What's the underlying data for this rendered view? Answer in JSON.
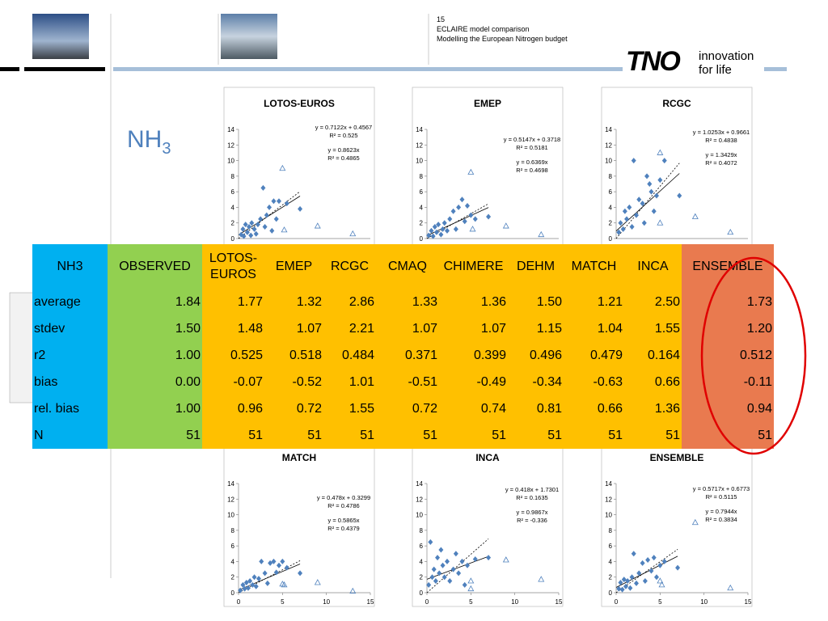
{
  "header": {
    "page_number": "15",
    "line1": "ECLAIRE model comparison",
    "line2": "Modelling the European Nitrogen budget",
    "logo": "TNO",
    "tagline1": "innovation",
    "tagline2": "for life"
  },
  "title": {
    "main": "NH",
    "sub": "3"
  },
  "table": {
    "header": [
      "NH3",
      "OBSERVED",
      "LOTOS-EUROS",
      "EMEP",
      "RCGC",
      "CMAQ",
      "CHIMERE",
      "DEHM",
      "MATCH",
      "INCA",
      "ENSEMBLE"
    ],
    "rows": [
      [
        "average",
        "1.84",
        "1.77",
        "1.32",
        "2.86",
        "1.33",
        "1.36",
        "1.50",
        "1.21",
        "2.50",
        "1.73"
      ],
      [
        "stdev",
        "1.50",
        "1.48",
        "1.07",
        "2.21",
        "1.07",
        "1.07",
        "1.15",
        "1.04",
        "1.55",
        "1.20"
      ],
      [
        "r2",
        "1.00",
        "0.525",
        "0.518",
        "0.484",
        "0.371",
        "0.399",
        "0.496",
        "0.479",
        "0.164",
        "0.512"
      ],
      [
        "bias",
        "0.00",
        "-0.07",
        "-0.52",
        "1.01",
        "-0.51",
        "-0.49",
        "-0.34",
        "-0.63",
        "0.66",
        "-0.11"
      ],
      [
        "rel. bias",
        "1.00",
        "0.96",
        "0.72",
        "1.55",
        "0.72",
        "0.74",
        "0.81",
        "0.66",
        "1.36",
        "0.94"
      ],
      [
        "N",
        "51",
        "51",
        "51",
        "51",
        "51",
        "51",
        "51",
        "51",
        "51",
        "51"
      ]
    ]
  },
  "charts": [
    {
      "type": "scatter",
      "title": "LOTOS-EUROS",
      "equations": [
        "y = 0.7122x + 0.4567",
        "R² = 0.525",
        "y = 0.8623x",
        "R² = 0.4865"
      ],
      "xlim": [
        0,
        15
      ],
      "ylim": [
        0,
        14
      ],
      "yticks": [
        0,
        2,
        4,
        6,
        8,
        10,
        12,
        14
      ],
      "color": "#4f81bd",
      "points": {
        "x": [
          0.3,
          0.5,
          0.6,
          0.8,
          1,
          1.2,
          1.4,
          1.5,
          1.8,
          2,
          2.2,
          2.5,
          2.8,
          3,
          3.2,
          3.5,
          3.8,
          4,
          4.3,
          4.6,
          5.5,
          7
        ],
        "y": [
          0.5,
          1.2,
          0.3,
          1.8,
          0.8,
          1.5,
          0.4,
          2,
          1.2,
          0.6,
          1.8,
          2.5,
          6.5,
          1.5,
          3,
          4,
          1,
          4.8,
          2.5,
          4.8,
          4.5,
          3.8
        ]
      },
      "open_points": {
        "x": [
          5,
          9,
          13,
          5.2
        ],
        "y": [
          9,
          1.6,
          0.6,
          1.1
        ]
      },
      "fits": [
        {
          "slope": 0.7122,
          "intercept": 0.4567,
          "style": "solid"
        },
        {
          "slope": 0.8623,
          "intercept": 0,
          "style": "dashed"
        }
      ]
    },
    {
      "type": "scatter",
      "title": "EMEP",
      "equations": [
        "y = 0.5147x + 0.3718",
        "R² = 0.5181",
        "y = 0.6369x",
        "R² = 0.4698"
      ],
      "xlim": [
        0,
        15
      ],
      "ylim": [
        0,
        14
      ],
      "yticks": [
        0,
        2,
        4,
        6,
        8,
        10,
        12,
        14
      ],
      "color": "#4f81bd",
      "points": {
        "x": [
          0.2,
          0.5,
          0.7,
          0.9,
          1.1,
          1.3,
          1.6,
          1.8,
          2,
          2.3,
          2.6,
          3,
          3.3,
          3.6,
          4,
          4.3,
          4.6,
          5,
          5.5,
          7
        ],
        "y": [
          0.4,
          1,
          0.3,
          1.5,
          0.8,
          1.8,
          0.5,
          1.2,
          2,
          1,
          2.5,
          3.5,
          1.2,
          4,
          5,
          2.2,
          4.2,
          3,
          2.5,
          2.8
        ]
      },
      "open_points": {
        "x": [
          5,
          9,
          13,
          5.2
        ],
        "y": [
          8.5,
          1.6,
          0.5,
          1.2
        ]
      },
      "fits": [
        {
          "slope": 0.5147,
          "intercept": 0.3718,
          "style": "solid"
        },
        {
          "slope": 0.6369,
          "intercept": 0,
          "style": "dashed"
        }
      ]
    },
    {
      "type": "scatter",
      "title": "RCGC",
      "equations": [
        "y = 1.0253x + 0.9661",
        "R² = 0.4838",
        "y = 1.3429x",
        "R² = 0.4072"
      ],
      "xlim": [
        0,
        15
      ],
      "ylim": [
        0,
        14
      ],
      "yticks": [
        0,
        2,
        4,
        6,
        8,
        10,
        12,
        14
      ],
      "color": "#4f81bd",
      "points": {
        "x": [
          0.3,
          0.5,
          0.8,
          1,
          1.2,
          1.5,
          1.8,
          2,
          2.3,
          2.6,
          3,
          3.2,
          3.5,
          3.8,
          4,
          4.3,
          4.6,
          5,
          5.5,
          7.2
        ],
        "y": [
          0.8,
          2,
          1.2,
          3.5,
          2.5,
          4,
          1.5,
          10,
          3,
          5,
          4.5,
          2,
          8,
          7,
          6,
          3.5,
          5.5,
          7.5,
          10,
          5.5
        ]
      },
      "open_points": {
        "x": [
          5,
          9,
          13,
          5
        ],
        "y": [
          11,
          2.8,
          0.8,
          2
        ]
      },
      "fits": [
        {
          "slope": 1.0253,
          "intercept": 0.9661,
          "style": "solid"
        },
        {
          "slope": 1.3429,
          "intercept": 0,
          "style": "dashed"
        }
      ]
    },
    {
      "type": "scatter",
      "title": "MATCH",
      "equations": [
        "y = 0.478x + 0.3299",
        "R² = 0.4786",
        "y = 0.5865x",
        "R² = 0.4379"
      ],
      "xlim": [
        0,
        15
      ],
      "ylim": [
        0,
        14
      ],
      "yticks": [
        0,
        2,
        4,
        6,
        8,
        10,
        12,
        14
      ],
      "xticks": [
        0,
        5,
        10,
        15
      ],
      "color": "#4f81bd",
      "points": {
        "x": [
          0.2,
          0.5,
          0.7,
          0.9,
          1.1,
          1.3,
          1.6,
          1.8,
          2,
          2.3,
          2.6,
          3,
          3.3,
          3.6,
          4,
          4.3,
          4.6,
          5,
          5.5,
          7
        ],
        "y": [
          0.3,
          1,
          0.5,
          1.3,
          0.6,
          1.5,
          1,
          2,
          0.8,
          1.8,
          4,
          2.5,
          1.2,
          3.8,
          4,
          2.6,
          3.5,
          4,
          3.2,
          2.5
        ]
      },
      "open_points": {
        "x": [
          5,
          9,
          13,
          5.2
        ],
        "y": [
          1.1,
          1.3,
          0.2,
          1
        ]
      },
      "fits": [
        {
          "slope": 0.478,
          "intercept": 0.3299,
          "style": "solid"
        },
        {
          "slope": 0.5865,
          "intercept": 0,
          "style": "dashed"
        }
      ]
    },
    {
      "type": "scatter",
      "title": "INCA",
      "equations": [
        "y = 0.418x + 1.7301",
        "R² = 0.1635",
        "y = 0.9867x",
        "R² = -0.336"
      ],
      "xlim": [
        0,
        15
      ],
      "ylim": [
        0,
        14
      ],
      "yticks": [
        0,
        2,
        4,
        6,
        8,
        10,
        12,
        14
      ],
      "xticks": [
        0,
        5,
        10,
        15
      ],
      "color": "#4f81bd",
      "points": {
        "x": [
          0.2,
          0.4,
          0.6,
          0.8,
          1,
          1.2,
          1.4,
          1.6,
          1.8,
          2,
          2.3,
          2.6,
          3,
          3.3,
          3.6,
          4,
          4.3,
          4.6,
          5.5,
          7
        ],
        "y": [
          1,
          6.5,
          2,
          3,
          1.5,
          4.5,
          2.5,
          5.5,
          3.5,
          2,
          4,
          1.5,
          3,
          5,
          2.5,
          4,
          1,
          3.5,
          4.3,
          4.5
        ]
      },
      "open_points": {
        "x": [
          5,
          9,
          13,
          5
        ],
        "y": [
          0.5,
          4.2,
          1.7,
          1.5
        ]
      },
      "fits": [
        {
          "slope": 0.418,
          "intercept": 1.7301,
          "style": "solid"
        },
        {
          "slope": 0.9867,
          "intercept": 0,
          "style": "dashed"
        }
      ]
    },
    {
      "type": "scatter",
      "title": "ENSEMBLE",
      "equations": [
        "y = 0.5717x + 0.6773",
        "R² = 0.5115",
        "y = 0.7944x",
        "R² = 0.3834"
      ],
      "xlim": [
        0,
        15
      ],
      "ylim": [
        0,
        14
      ],
      "yticks": [
        0,
        2,
        4,
        6,
        8,
        10,
        12,
        14
      ],
      "xticks": [
        0,
        5,
        10,
        15
      ],
      "color": "#4f81bd",
      "points": {
        "x": [
          0.3,
          0.5,
          0.7,
          0.9,
          1.1,
          1.3,
          1.6,
          1.8,
          2,
          2.3,
          2.6,
          3,
          3.3,
          3.6,
          4,
          4.3,
          4.6,
          5,
          5.5,
          7
        ],
        "y": [
          0.5,
          1.3,
          0.4,
          1.7,
          0.8,
          1.5,
          0.6,
          2,
          5,
          1.2,
          2.5,
          3.8,
          1.5,
          4.2,
          2.8,
          4.5,
          2,
          3.5,
          4,
          3.2
        ]
      },
      "open_points": {
        "x": [
          5,
          9,
          13,
          5.2
        ],
        "y": [
          1.5,
          9,
          0.6,
          1
        ]
      },
      "fits": [
        {
          "slope": 0.5717,
          "intercept": 0.6773,
          "style": "solid"
        },
        {
          "slope": 0.7944,
          "intercept": 0,
          "style": "dashed"
        }
      ]
    }
  ]
}
